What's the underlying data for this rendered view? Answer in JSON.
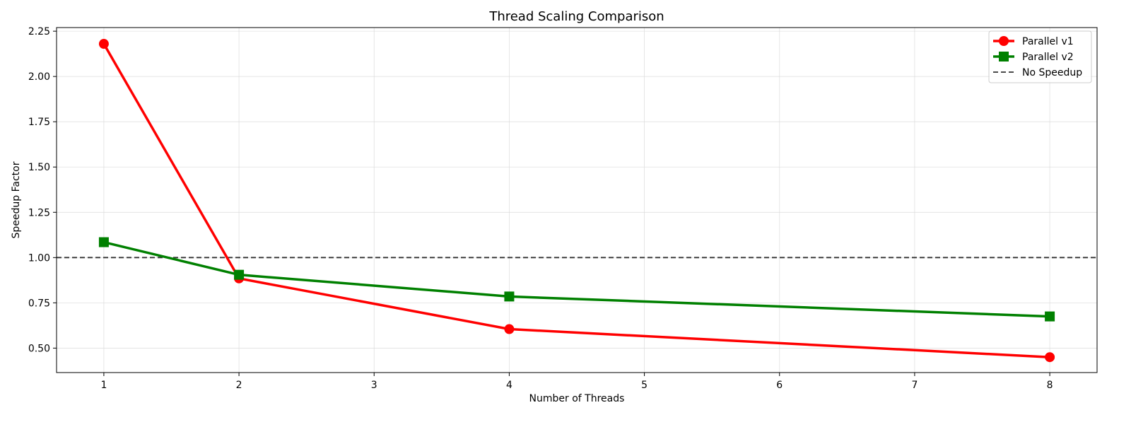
{
  "chart_data": {
    "type": "line",
    "title": "Thread Scaling Comparison",
    "xlabel": "Number of Threads",
    "ylabel": "Speedup Factor",
    "x": [
      1,
      2,
      4,
      8
    ],
    "xlim": [
      0.65,
      8.35
    ],
    "ylim": [
      0.365,
      2.27
    ],
    "xticks": [
      1,
      2,
      3,
      4,
      5,
      6,
      7,
      8
    ],
    "yticks": [
      0.5,
      0.75,
      1.0,
      1.25,
      1.5,
      1.75,
      2.0,
      2.25
    ],
    "grid": true,
    "legend_position": "top-right",
    "series": [
      {
        "name": "Parallel v1",
        "values": [
          2.18,
          0.885,
          0.605,
          0.45
        ],
        "color": "#ff0000",
        "marker": "circle"
      },
      {
        "name": "Parallel v2",
        "values": [
          1.085,
          0.905,
          0.785,
          0.675
        ],
        "color": "#008000",
        "marker": "square"
      }
    ],
    "reference_line": {
      "name": "No Speedup",
      "y": 1.0,
      "color": "#333333",
      "style": "dashed"
    }
  }
}
